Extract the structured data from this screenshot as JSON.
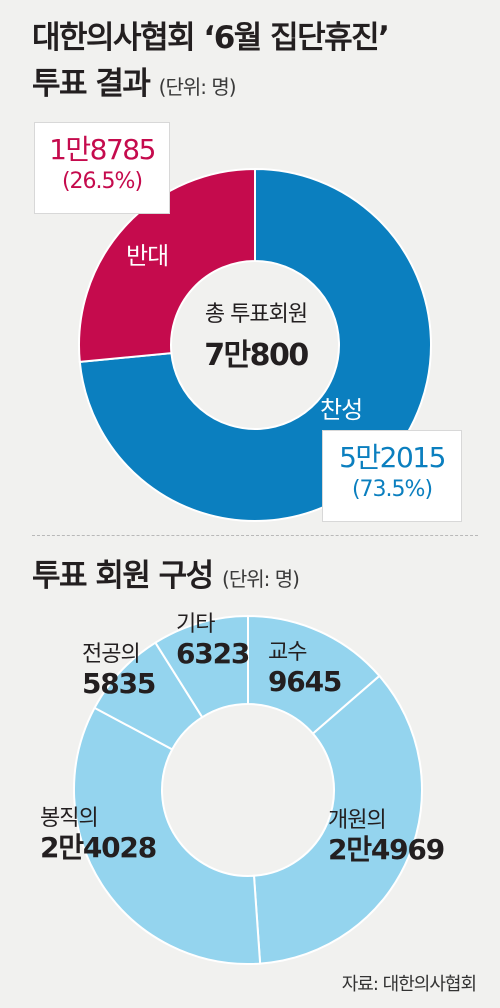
{
  "title": {
    "line1": "대한의사협회 ‘6월 집단휴진’",
    "line2": "투표 결과",
    "unit": "(단위: 명)"
  },
  "vote_result": {
    "oppose": {
      "label": "반대",
      "count_text": "1만8785",
      "percent_text": "(26.5%)"
    },
    "favor": {
      "label": "찬성",
      "count_text": "5만2015",
      "percent_text": "(73.5%)"
    },
    "center": {
      "label": "총 투표회원",
      "value": "7만800"
    }
  },
  "composition": {
    "title": "투표 회원 구성",
    "unit": "(단위: 명)",
    "segments": [
      {
        "name": "교수",
        "value_text": "9645"
      },
      {
        "name": "개원의",
        "value_text": "2만4969"
      },
      {
        "name": "봉직의",
        "value_text": "2만4028"
      },
      {
        "name": "전공의",
        "value_text": "5835"
      },
      {
        "name": "기타",
        "value_text": "6323"
      }
    ]
  },
  "source": "자료: 대한의사협회",
  "colors": {
    "oppose": "#c50b4d",
    "favor": "#0b7fbf",
    "composition": "#94d4ee",
    "background": "#f1f1ef"
  },
  "chart_data": [
    {
      "type": "pie",
      "categories": [
        "찬성",
        "반대"
      ],
      "values": [
        52015,
        18785
      ],
      "percent": [
        73.5,
        26.5
      ]
    },
    {
      "type": "pie",
      "categories": [
        "교수",
        "개원의",
        "봉직의",
        "전공의",
        "기타"
      ],
      "values": [
        9645,
        24969,
        24028,
        5835,
        6323
      ]
    }
  ]
}
